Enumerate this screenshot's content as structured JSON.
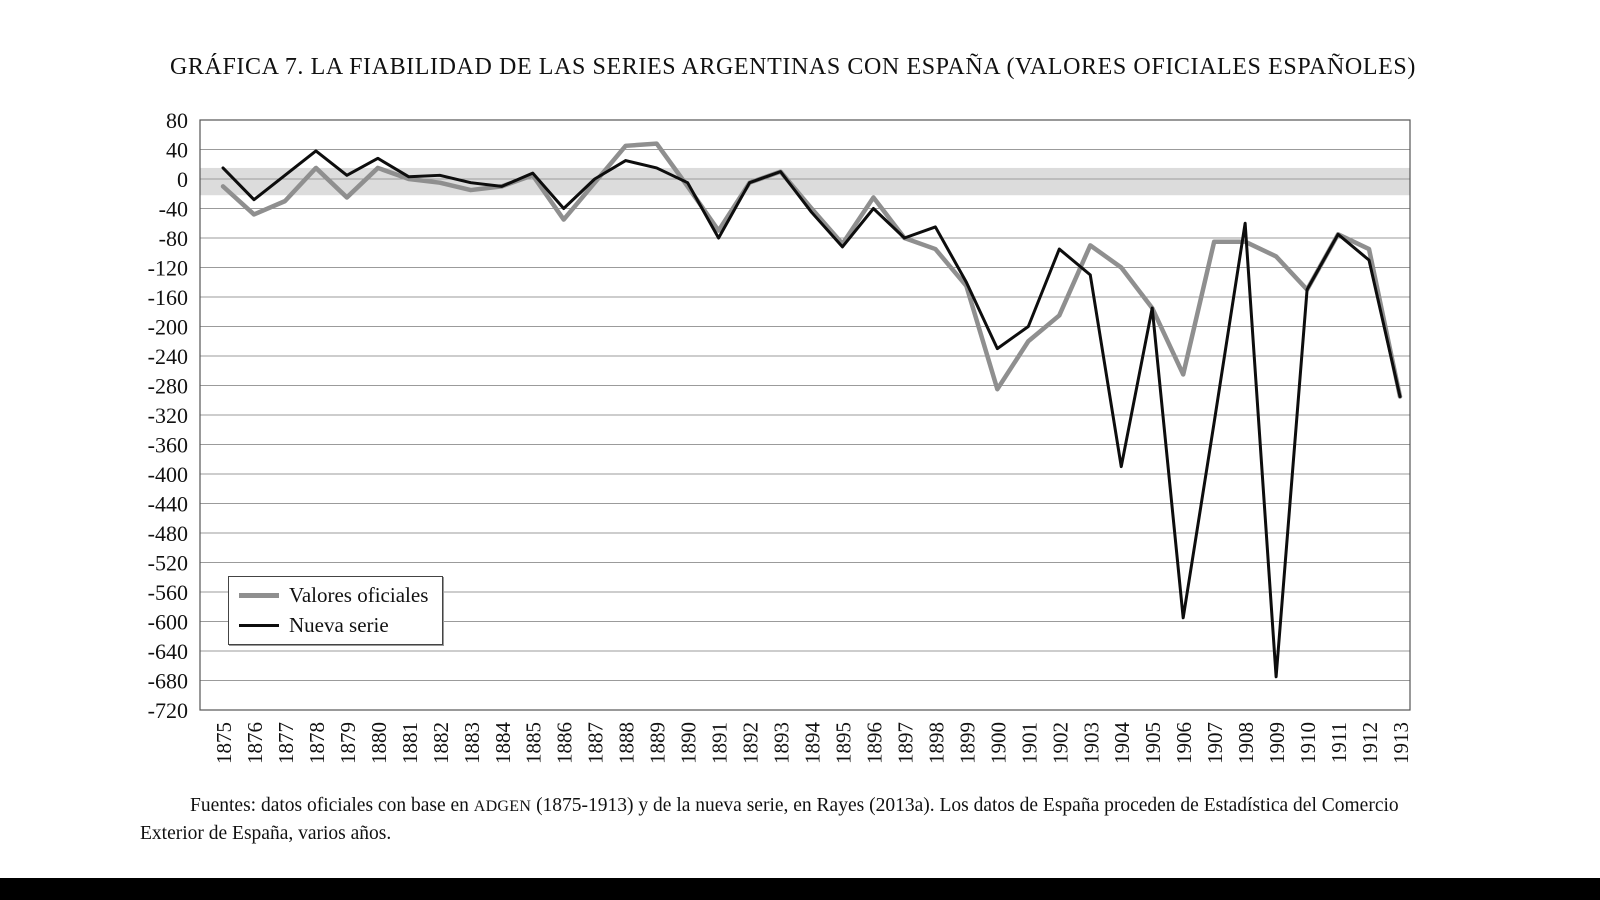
{
  "chart_data": {
    "type": "line",
    "title": "GRÁFICA 7. LA FIABILIDAD DE LAS SERIES ARGENTINAS CON ESPAÑA (VALORES OFICIALES ESPAÑOLES)",
    "x": [
      1875,
      1876,
      1877,
      1878,
      1879,
      1880,
      1881,
      1882,
      1883,
      1884,
      1885,
      1886,
      1887,
      1888,
      1889,
      1890,
      1891,
      1892,
      1893,
      1894,
      1895,
      1896,
      1897,
      1898,
      1899,
      1900,
      1901,
      1902,
      1903,
      1904,
      1905,
      1906,
      1907,
      1908,
      1909,
      1910,
      1911,
      1912,
      1913
    ],
    "series": [
      {
        "name": "Valores oficiales",
        "color": "#8f8f8f",
        "stroke_width": 4.5,
        "values": [
          -10,
          -48,
          -30,
          15,
          -25,
          15,
          0,
          -5,
          -15,
          -10,
          5,
          -55,
          -5,
          45,
          48,
          -10,
          -70,
          -5,
          10,
          -40,
          -88,
          -25,
          -80,
          -95,
          -145,
          -285,
          -220,
          -185,
          -90,
          -120,
          -175,
          -265,
          -85,
          -85,
          -105,
          -150,
          -75,
          -95,
          -295
        ]
      },
      {
        "name": "Nueva serie",
        "color": "#0d0d0d",
        "stroke_width": 3,
        "values": [
          15,
          -28,
          5,
          38,
          5,
          28,
          3,
          5,
          -5,
          -10,
          8,
          -40,
          0,
          25,
          15,
          -5,
          -80,
          -5,
          10,
          -45,
          -92,
          -40,
          -80,
          -65,
          -140,
          -230,
          -200,
          -95,
          -130,
          -390,
          -175,
          -595,
          -330,
          -60,
          -675,
          -150,
          -75,
          -110,
          -295
        ]
      }
    ],
    "ylim": [
      -720,
      80
    ],
    "ytick_step": 40,
    "xlabel": "",
    "ylabel": "",
    "grid": true,
    "gridline_color": "#9b9b9b",
    "zero_band": [
      15,
      -22
    ],
    "zero_band_color": "#dcdcdc",
    "legend_position": "inside-bottom-left"
  },
  "footer": {
    "part1": "Fuentes: datos oficiales con base en ",
    "adgen": "ADGEN",
    "part2": " (1875-1913) y de la nueva serie, en Rayes (2013a). Los datos de España proceden de Estadística del Comercio",
    "line2": "Exterior de España, varios años."
  }
}
